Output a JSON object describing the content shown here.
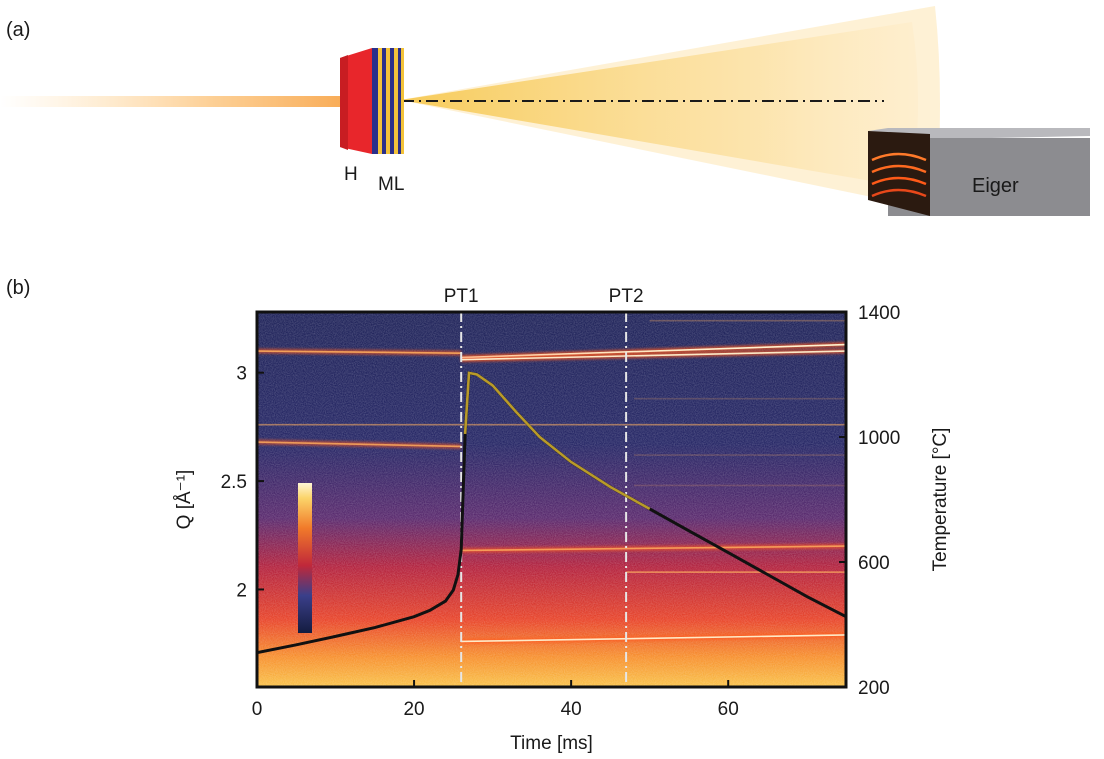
{
  "panel_a": {
    "label": "(a)",
    "heater_label": "H",
    "multilayer_label": "ML",
    "detector_label": "Eiger"
  },
  "panel_b": {
    "label": "(b)",
    "transition_1": "PT1",
    "transition_2": "PT2"
  },
  "colors": {
    "background_low": "#1a2155",
    "band_hot": "#ffb040",
    "temperature_curve": "#111111",
    "heater_red": "#e8262b",
    "detector_grey": "#8c8c90"
  },
  "chart_data": {
    "type": "heatmap",
    "xlabel": "Time [ms]",
    "ylabel": "Q [Å⁻¹]",
    "y2label": "Temperature [°C]",
    "xlim": [
      0,
      75
    ],
    "ylim": [
      1.55,
      3.28
    ],
    "y2lim": [
      200,
      1400
    ],
    "x_ticks": [
      "0",
      "20",
      "40",
      "60"
    ],
    "x_tick_values": [
      0,
      20,
      40,
      60
    ],
    "y_ticks": [
      "2",
      "2.5",
      "3"
    ],
    "y_tick_values": [
      2,
      2.5,
      3
    ],
    "y2_ticks": [
      "200",
      "600",
      "1000",
      "1400"
    ],
    "y2_tick_values": [
      200,
      600,
      1000,
      1400
    ],
    "phase_transitions": [
      {
        "label": "PT1",
        "time": 26
      },
      {
        "label": "PT2",
        "time": 47
      }
    ],
    "temperature_series": {
      "time": [
        0,
        5,
        10,
        15,
        20,
        22,
        24,
        25,
        25.6,
        26,
        26.5,
        27,
        28,
        30,
        33,
        36,
        40,
        45,
        50,
        55,
        60,
        65,
        70,
        75
      ],
      "temperature": [
        310,
        335,
        362,
        390,
        425,
        445,
        475,
        510,
        560,
        640,
        1010,
        1205,
        1200,
        1165,
        1080,
        1000,
        920,
        840,
        770,
        700,
        630,
        560,
        490,
        425
      ]
    },
    "diffraction_lines": [
      {
        "q_start": 3.1,
        "q_end": 3.09,
        "t_start": 0,
        "t_end": 26,
        "intensity": 0.85
      },
      {
        "q_start": 2.68,
        "q_end": 2.66,
        "t_start": 0,
        "t_end": 26,
        "intensity": 0.8
      },
      {
        "q_start": 2.76,
        "q_end": 2.76,
        "t_start": 0,
        "t_end": 75,
        "intensity": 0.55
      },
      {
        "q_start": 3.07,
        "q_end": 3.13,
        "t_start": 26,
        "t_end": 75,
        "intensity": 1.0
      },
      {
        "q_start": 3.06,
        "q_end": 3.1,
        "t_start": 26,
        "t_end": 75,
        "intensity": 0.95
      },
      {
        "q_start": 2.18,
        "q_end": 2.2,
        "t_start": 26,
        "t_end": 75,
        "intensity": 0.8
      },
      {
        "q_start": 1.76,
        "q_end": 1.79,
        "t_start": 26,
        "t_end": 75,
        "intensity": 0.95
      },
      {
        "q_start": 2.08,
        "q_end": 2.08,
        "t_start": 47,
        "t_end": 75,
        "intensity": 0.75
      },
      {
        "q_start": 3.24,
        "q_end": 3.24,
        "t_start": 50,
        "t_end": 75,
        "intensity": 0.3
      },
      {
        "q_start": 2.88,
        "q_end": 2.88,
        "t_start": 48,
        "t_end": 75,
        "intensity": 0.2
      },
      {
        "q_start": 2.62,
        "q_end": 2.62,
        "t_start": 48,
        "t_end": 75,
        "intensity": 0.2
      },
      {
        "q_start": 2.48,
        "q_end": 2.48,
        "t_start": 48,
        "t_end": 75,
        "intensity": 0.18
      }
    ]
  }
}
